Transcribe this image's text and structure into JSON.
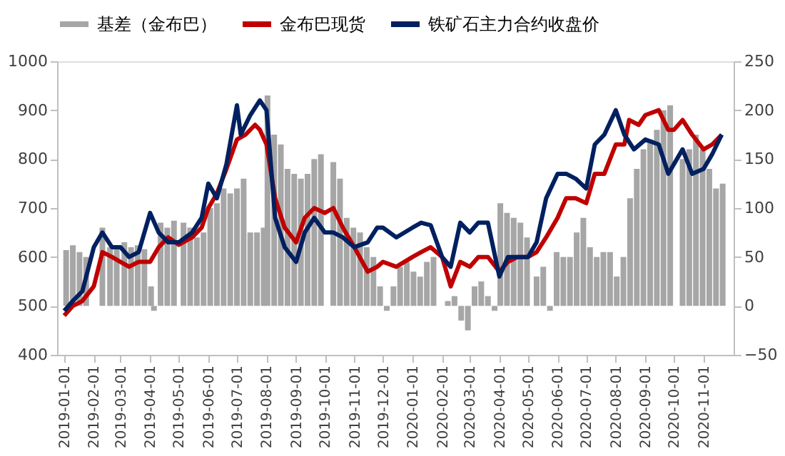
{
  "chart_data": {
    "type": "line",
    "legend": "top",
    "grid": false,
    "xlim": [
      "2019-01-01",
      "2020-11-25"
    ],
    "ylim": [
      400,
      1000
    ],
    "yticks": [
      400,
      500,
      600,
      700,
      800,
      900,
      1000
    ],
    "y2lim": [
      -50,
      250
    ],
    "y2ticks": [
      -50,
      0,
      50,
      100,
      150,
      200,
      250
    ],
    "xticks": [
      "2019-01-01",
      "2019-02-01",
      "2019-03-01",
      "2019-04-01",
      "2019-05-01",
      "2019-06-01",
      "2019-07-01",
      "2019-08-01",
      "2019-09-01",
      "2019-10-01",
      "2019-11-01",
      "2019-12-01",
      "2020-01-01",
      "2020-02-01",
      "2020-03-01",
      "2020-04-01",
      "2020-05-01",
      "2020-06-01",
      "2020-07-01",
      "2020-08-01",
      "2020-09-01",
      "2020-10-01",
      "2020-11-01"
    ],
    "series": [
      {
        "name": "基差（金布巴）",
        "type": "bar",
        "axis": "y2",
        "color": "#a6a6a6",
        "x": [
          "2019-01-03",
          "2019-01-10",
          "2019-01-17",
          "2019-01-24",
          "2019-02-01",
          "2019-02-10",
          "2019-02-18",
          "2019-02-25",
          "2019-03-05",
          "2019-03-12",
          "2019-03-19",
          "2019-03-26",
          "2019-04-02",
          "2019-04-05",
          "2019-04-12",
          "2019-04-19",
          "2019-04-26",
          "2019-05-06",
          "2019-05-13",
          "2019-05-20",
          "2019-05-27",
          "2019-06-03",
          "2019-06-10",
          "2019-06-17",
          "2019-06-24",
          "2019-07-01",
          "2019-07-08",
          "2019-07-15",
          "2019-07-22",
          "2019-07-29",
          "2019-08-02",
          "2019-08-09",
          "2019-08-16",
          "2019-08-23",
          "2019-08-30",
          "2019-09-06",
          "2019-09-13",
          "2019-09-20",
          "2019-09-27",
          "2019-10-03",
          "2019-10-10",
          "2019-10-17",
          "2019-10-24",
          "2019-10-31",
          "2019-11-07",
          "2019-11-14",
          "2019-11-21",
          "2019-11-28",
          "2019-12-05",
          "2019-12-12",
          "2019-12-19",
          "2019-12-26",
          "2020-01-02",
          "2020-01-09",
          "2020-01-16",
          "2020-01-23",
          "2020-02-01",
          "2020-02-07",
          "2020-02-14",
          "2020-02-21",
          "2020-02-28",
          "2020-03-06",
          "2020-03-13",
          "2020-03-20",
          "2020-03-27",
          "2020-04-02",
          "2020-04-09",
          "2020-04-16",
          "2020-04-23",
          "2020-04-30",
          "2020-05-03",
          "2020-05-10",
          "2020-05-17",
          "2020-05-24",
          "2020-05-31",
          "2020-06-07",
          "2020-06-14",
          "2020-06-21",
          "2020-06-28",
          "2020-07-05",
          "2020-07-12",
          "2020-07-19",
          "2020-07-26",
          "2020-08-02",
          "2020-08-09",
          "2020-08-16",
          "2020-08-23",
          "2020-08-30",
          "2020-09-06",
          "2020-09-13",
          "2020-09-20",
          "2020-09-27",
          "2020-10-03",
          "2020-10-10",
          "2020-10-17",
          "2020-10-24",
          "2020-10-31",
          "2020-11-07",
          "2020-11-14",
          "2020-11-21"
        ],
        "values": [
          57,
          62,
          55,
          50,
          null,
          80,
          60,
          62,
          65,
          60,
          62,
          58,
          20,
          -5,
          85,
          80,
          87,
          85,
          80,
          70,
          75,
          100,
          105,
          120,
          115,
          120,
          130,
          75,
          75,
          80,
          215,
          175,
          165,
          140,
          135,
          130,
          135,
          150,
          155,
          null,
          147,
          130,
          90,
          80,
          75,
          60,
          50,
          20,
          -5,
          20,
          40,
          45,
          35,
          30,
          45,
          50,
          null,
          5,
          10,
          -15,
          -25,
          20,
          25,
          10,
          -5,
          105,
          95,
          90,
          85,
          70,
          null,
          30,
          40,
          -5,
          55,
          50,
          50,
          75,
          90,
          60,
          50,
          55,
          55,
          30,
          50,
          110,
          140,
          160,
          170,
          180,
          200,
          205,
          null,
          150,
          160,
          175,
          160,
          140,
          120,
          125
        ]
      },
      {
        "name": "金布巴现货",
        "color": "#c00000",
        "x": [
          "2019-01-01",
          "2019-01-10",
          "2019-01-20",
          "2019-02-01",
          "2019-02-10",
          "2019-02-20",
          "2019-03-01",
          "2019-03-10",
          "2019-03-20",
          "2019-04-01",
          "2019-04-10",
          "2019-04-20",
          "2019-05-01",
          "2019-05-15",
          "2019-05-25",
          "2019-06-01",
          "2019-06-10",
          "2019-06-20",
          "2019-07-01",
          "2019-07-10",
          "2019-07-20",
          "2019-07-25",
          "2019-08-01",
          "2019-08-10",
          "2019-08-20",
          "2019-09-01",
          "2019-09-10",
          "2019-09-20",
          "2019-10-01",
          "2019-10-10",
          "2019-10-20",
          "2019-11-01",
          "2019-11-15",
          "2019-11-25",
          "2019-12-01",
          "2019-12-15",
          "2020-01-01",
          "2020-01-10",
          "2020-01-20",
          "2020-02-01",
          "2020-02-10",
          "2020-02-20",
          "2020-03-01",
          "2020-03-10",
          "2020-03-20",
          "2020-04-01",
          "2020-04-10",
          "2020-04-20",
          "2020-05-01",
          "2020-05-10",
          "2020-05-20",
          "2020-06-01",
          "2020-06-10",
          "2020-06-20",
          "2020-07-01",
          "2020-07-10",
          "2020-07-20",
          "2020-08-01",
          "2020-08-10",
          "2020-08-15",
          "2020-08-25",
          "2020-09-01",
          "2020-09-15",
          "2020-09-25",
          "2020-10-01",
          "2020-10-10",
          "2020-10-20",
          "2020-11-01",
          "2020-11-10",
          "2020-11-20"
        ],
        "values": [
          480,
          500,
          510,
          540,
          610,
          600,
          590,
          580,
          590,
          590,
          620,
          640,
          625,
          640,
          660,
          700,
          730,
          780,
          840,
          850,
          870,
          860,
          830,
          720,
          660,
          630,
          680,
          700,
          690,
          700,
          660,
          620,
          570,
          580,
          590,
          580,
          600,
          610,
          620,
          600,
          540,
          590,
          580,
          600,
          600,
          570,
          590,
          600,
          600,
          610,
          640,
          680,
          720,
          720,
          710,
          770,
          770,
          830,
          830,
          880,
          870,
          890,
          900,
          860,
          860,
          880,
          850,
          820,
          830,
          850
        ]
      },
      {
        "name": "铁矿石主力合约收盘价",
        "color": "#002060",
        "x": [
          "2019-01-01",
          "2019-01-10",
          "2019-01-20",
          "2019-02-01",
          "2019-02-10",
          "2019-02-20",
          "2019-03-01",
          "2019-03-10",
          "2019-03-20",
          "2019-04-01",
          "2019-04-10",
          "2019-04-20",
          "2019-05-01",
          "2019-05-15",
          "2019-05-25",
          "2019-06-01",
          "2019-06-10",
          "2019-06-20",
          "2019-07-01",
          "2019-07-05",
          "2019-07-15",
          "2019-07-25",
          "2019-08-01",
          "2019-08-10",
          "2019-08-20",
          "2019-09-01",
          "2019-09-10",
          "2019-09-20",
          "2019-10-01",
          "2019-10-10",
          "2019-10-20",
          "2019-11-01",
          "2019-11-15",
          "2019-11-25",
          "2019-12-01",
          "2019-12-15",
          "2020-01-01",
          "2020-01-10",
          "2020-01-20",
          "2020-02-01",
          "2020-02-10",
          "2020-02-20",
          "2020-03-01",
          "2020-03-10",
          "2020-03-20",
          "2020-04-01",
          "2020-04-10",
          "2020-04-20",
          "2020-05-01",
          "2020-05-10",
          "2020-05-20",
          "2020-06-01",
          "2020-06-10",
          "2020-06-20",
          "2020-07-01",
          "2020-07-10",
          "2020-07-20",
          "2020-08-01",
          "2020-08-10",
          "2020-08-20",
          "2020-09-01",
          "2020-09-15",
          "2020-09-25",
          "2020-10-01",
          "2020-10-10",
          "2020-10-20",
          "2020-11-01",
          "2020-11-10",
          "2020-11-20"
        ],
        "values": [
          490,
          510,
          530,
          620,
          650,
          620,
          620,
          600,
          610,
          690,
          650,
          630,
          630,
          650,
          680,
          750,
          720,
          790,
          910,
          850,
          890,
          920,
          900,
          680,
          620,
          590,
          650,
          680,
          650,
          650,
          640,
          620,
          630,
          660,
          660,
          640,
          660,
          670,
          665,
          600,
          580,
          670,
          650,
          670,
          670,
          560,
          600,
          600,
          600,
          630,
          720,
          770,
          770,
          760,
          740,
          830,
          850,
          900,
          850,
          820,
          840,
          830,
          770,
          790,
          820,
          770,
          780,
          810,
          850
        ]
      }
    ]
  }
}
